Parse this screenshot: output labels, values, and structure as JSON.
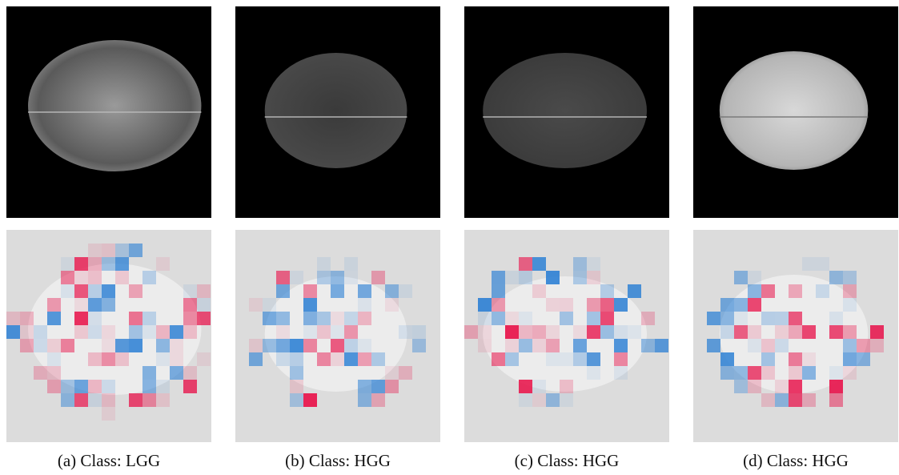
{
  "figure": {
    "captions": [
      "(a) Class: LGG",
      "(b) Class: HGG",
      "(c) Class: HGG",
      "(d) Class: HGG"
    ]
  }
}
